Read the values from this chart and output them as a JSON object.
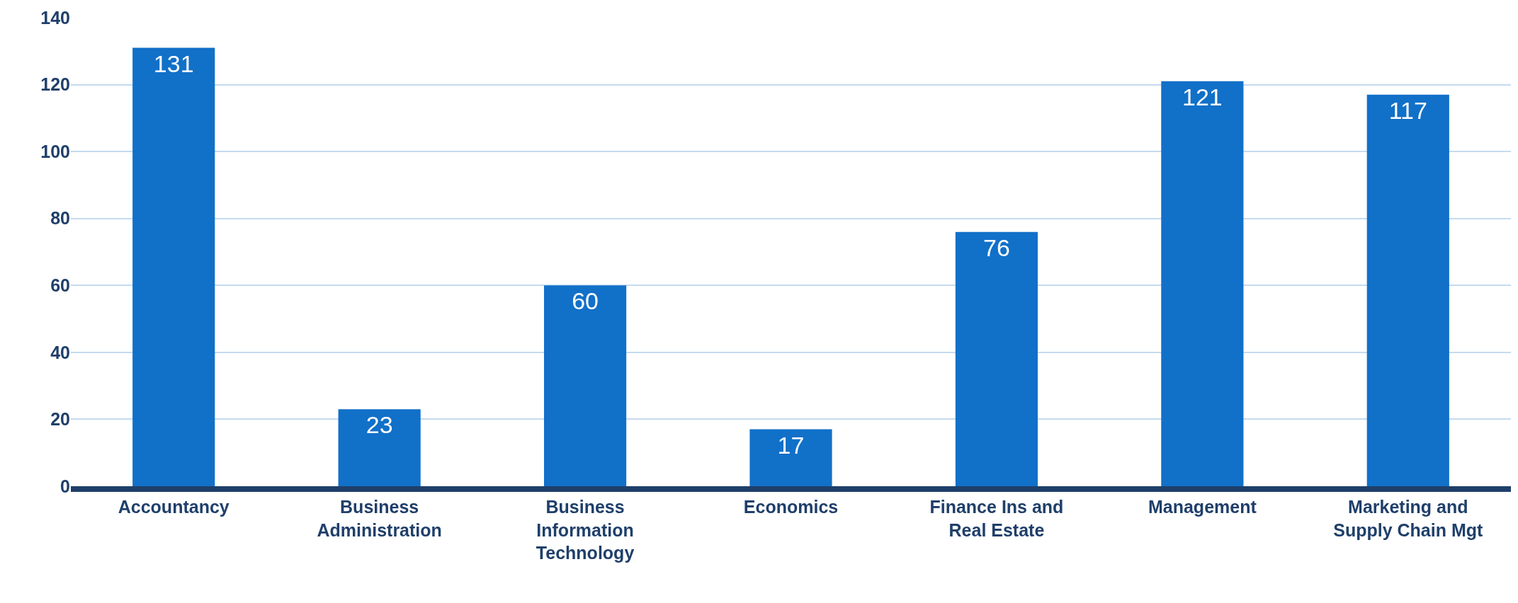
{
  "chart_data": {
    "type": "bar",
    "categories": [
      "Accountancy",
      "Business Administration",
      "Business Information Technology",
      "Economics",
      "Finance Ins and Real Estate",
      "Management",
      "Marketing and Supply Chain Mgt"
    ],
    "values": [
      131,
      23,
      60,
      17,
      76,
      121,
      117
    ],
    "color": "#1170c8",
    "ylim": [
      0,
      140
    ],
    "yticks": [
      0,
      20,
      40,
      60,
      80,
      100,
      120,
      140
    ],
    "grid": "y",
    "data_labels": true
  }
}
